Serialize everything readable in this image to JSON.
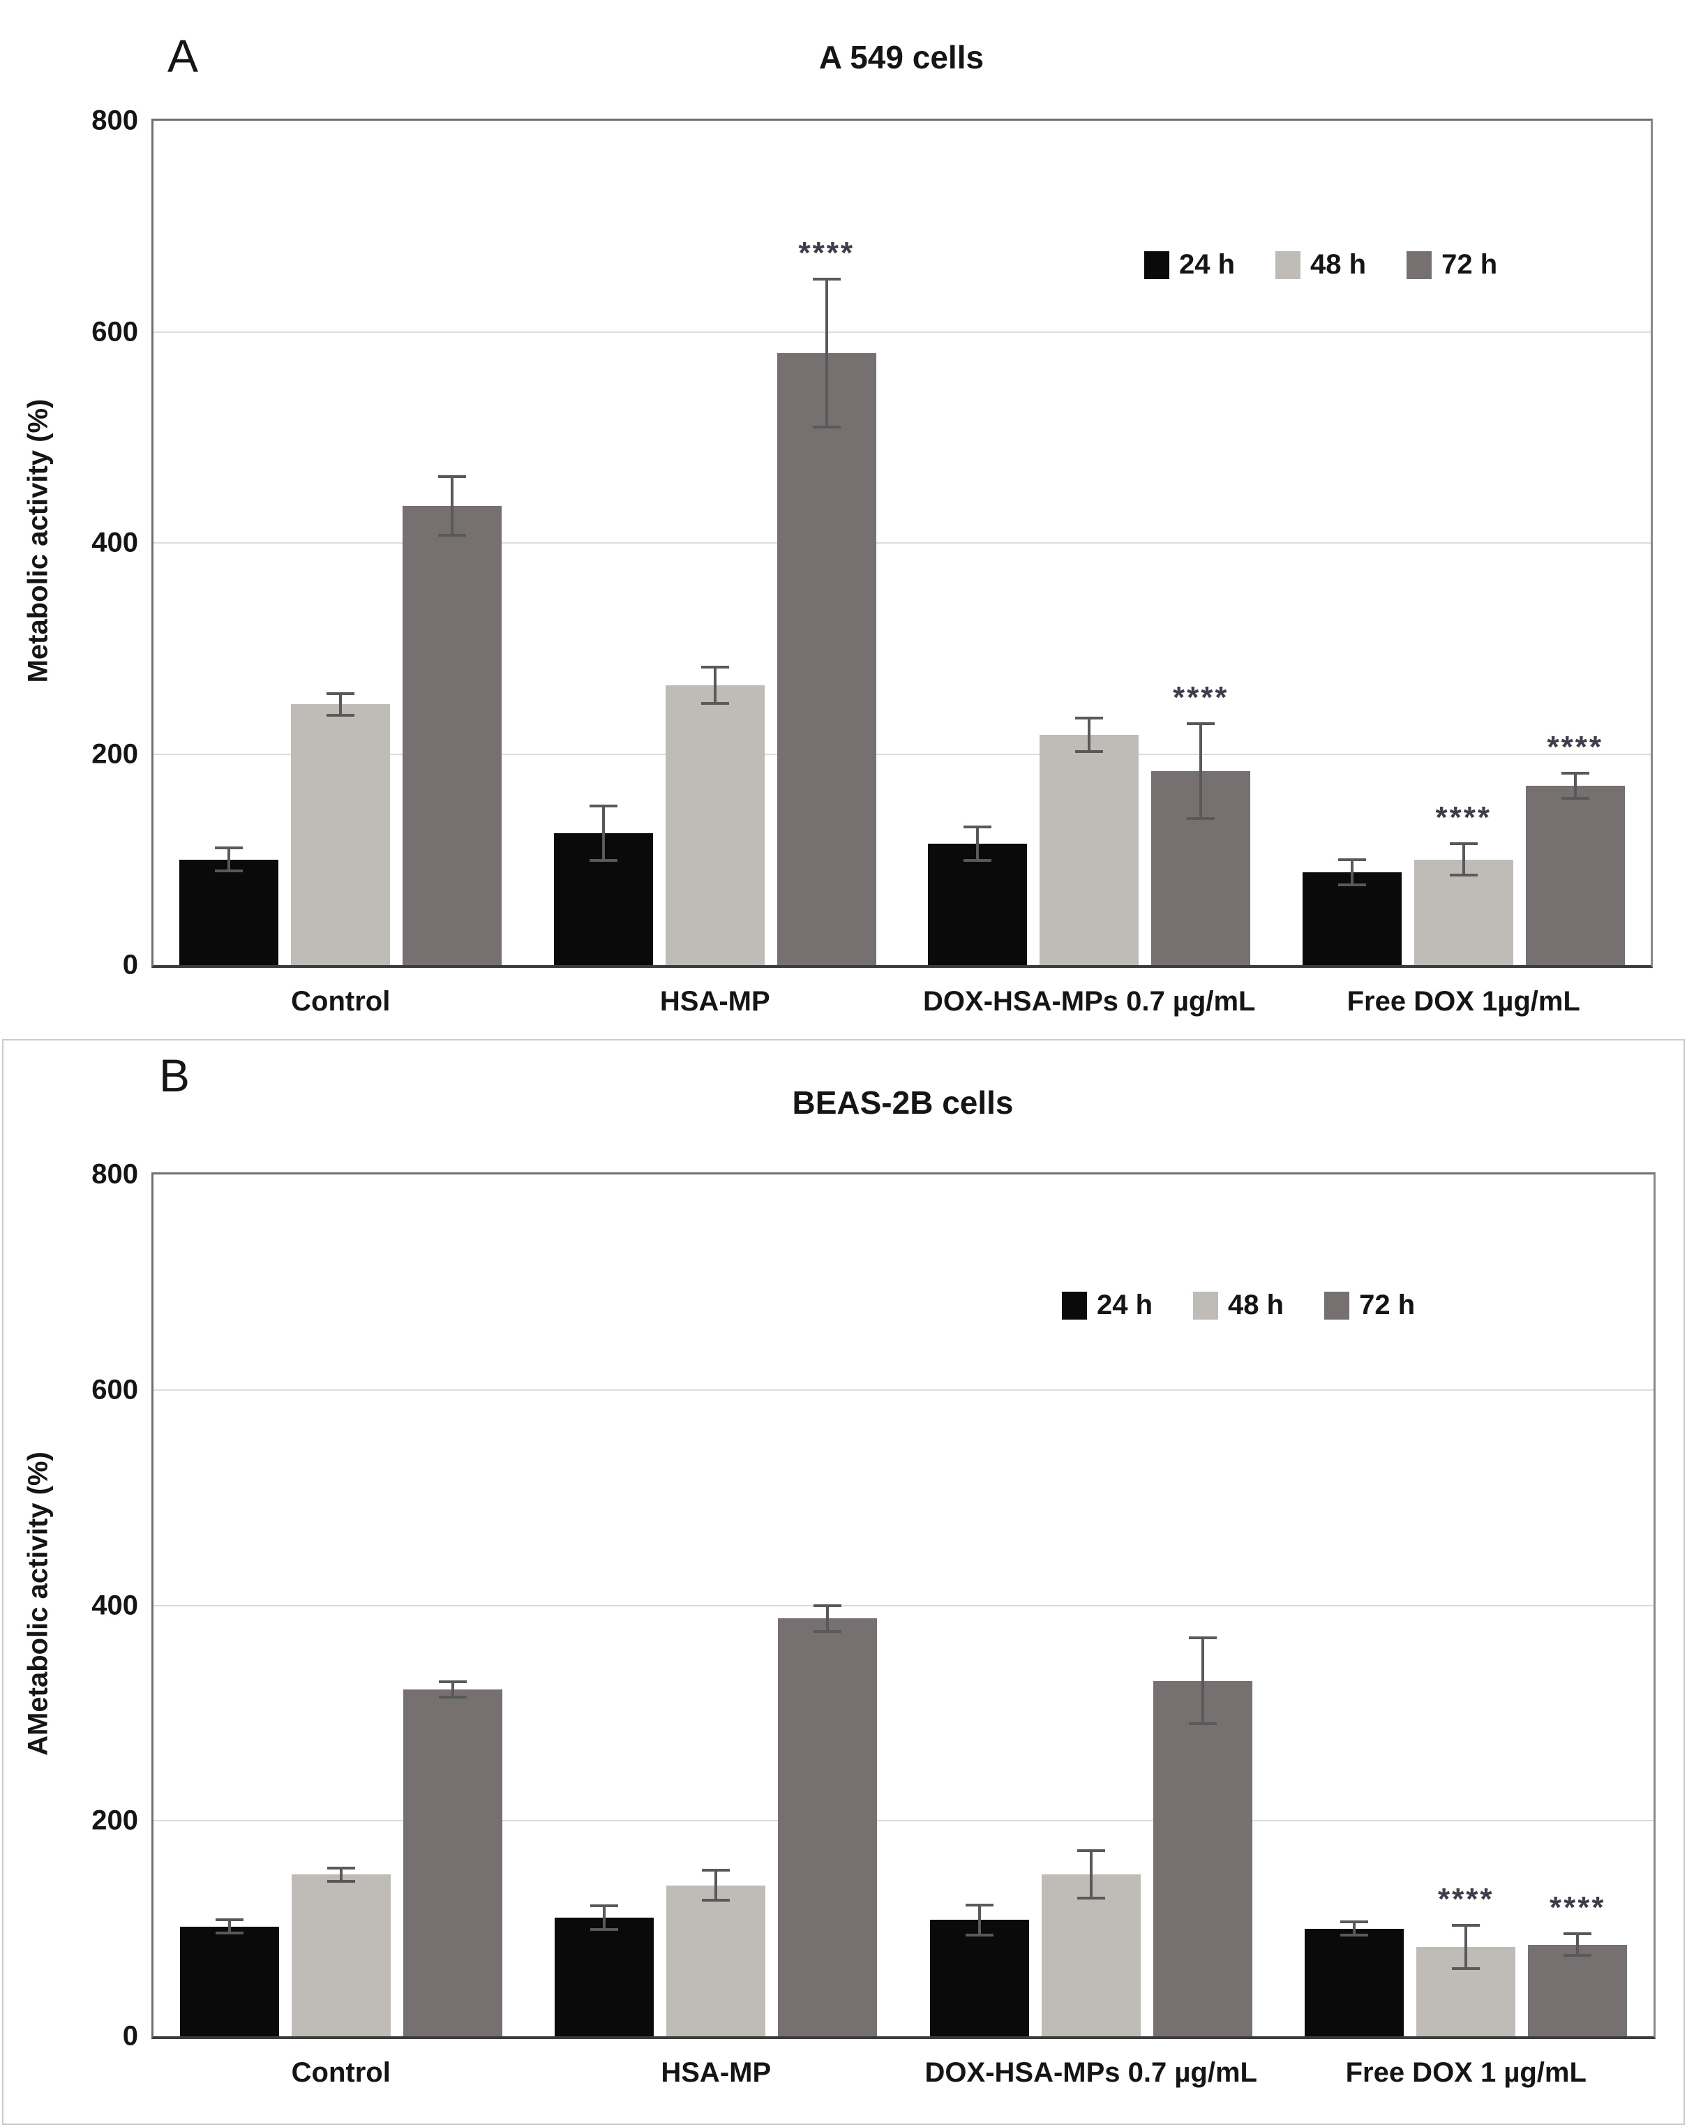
{
  "page": {
    "background": "#ffffff"
  },
  "panels": [
    {
      "letter": "A"
    },
    {
      "letter": "B"
    }
  ],
  "colors": {
    "series_24h": "#0a0a0a",
    "series_48h": "#bfbbb6",
    "series_72h": "#767070",
    "gridline": "#dcdcdc",
    "axis_frame": "#6f6f6f",
    "axis_bottom": "#3c3c3c",
    "error_bar": "#595959",
    "significance_text": "#3d3d4c",
    "panel_b_border": "#cbcbcb"
  },
  "significance_symbol": "****",
  "chart_data": [
    {
      "type": "bar",
      "title": "A 549 cells",
      "xlabel": "",
      "ylabel": "Metabolic activity (%)",
      "ylim": [
        0,
        800
      ],
      "yticks": [
        0,
        200,
        400,
        600,
        800
      ],
      "grid": "horizontal",
      "legend_position": "inside-upper-right",
      "legend_labels": [
        "24 h",
        "48 h",
        "72 h"
      ],
      "categories": [
        "Control",
        "HSA-MP",
        "DOX-HSA-MPs 0.7 µg/mL",
        "Free DOX 1µg/mL"
      ],
      "series": [
        {
          "name": "24 h",
          "color": "#0a0a0a",
          "values": [
            100,
            125,
            115,
            88
          ],
          "errors": [
            11,
            26,
            16,
            12
          ],
          "significance": [
            "",
            "",
            "",
            ""
          ]
        },
        {
          "name": "48 h",
          "color": "#bfbbb6",
          "values": [
            247,
            265,
            218,
            100
          ],
          "errors": [
            10,
            17,
            16,
            15
          ],
          "significance": [
            "",
            "",
            "",
            "****"
          ]
        },
        {
          "name": "72 h",
          "color": "#767070",
          "values": [
            435,
            580,
            184,
            170
          ],
          "errors": [
            28,
            70,
            45,
            12
          ],
          "significance": [
            "",
            "****",
            "****",
            "****"
          ]
        }
      ]
    },
    {
      "type": "bar",
      "title": "BEAS-2B cells",
      "xlabel": "",
      "ylabel": "AMetabolic activity (%)",
      "ylim": [
        0,
        800
      ],
      "yticks": [
        0,
        200,
        400,
        600,
        800
      ],
      "grid": "horizontal",
      "legend_position": "inside-upper-right",
      "legend_labels": [
        "24 h",
        "48 h",
        "72 h"
      ],
      "categories": [
        "Control",
        "HSA-MP",
        "DOX-HSA-MPs 0.7 µg/mL",
        "Free DOX 1 µg/mL"
      ],
      "series": [
        {
          "name": "24 h",
          "color": "#0a0a0a",
          "values": [
            102,
            110,
            108,
            100
          ],
          "errors": [
            6,
            11,
            14,
            6
          ],
          "significance": [
            "",
            "",
            "",
            ""
          ]
        },
        {
          "name": "48 h",
          "color": "#bfbbb6",
          "values": [
            150,
            140,
            150,
            83
          ],
          "errors": [
            6,
            14,
            22,
            20
          ],
          "significance": [
            "",
            "",
            "",
            "****"
          ]
        },
        {
          "name": "72 h",
          "color": "#767070",
          "values": [
            322,
            388,
            330,
            85
          ],
          "errors": [
            7,
            12,
            40,
            10
          ],
          "significance": [
            "",
            "",
            "",
            "****"
          ]
        }
      ]
    }
  ]
}
